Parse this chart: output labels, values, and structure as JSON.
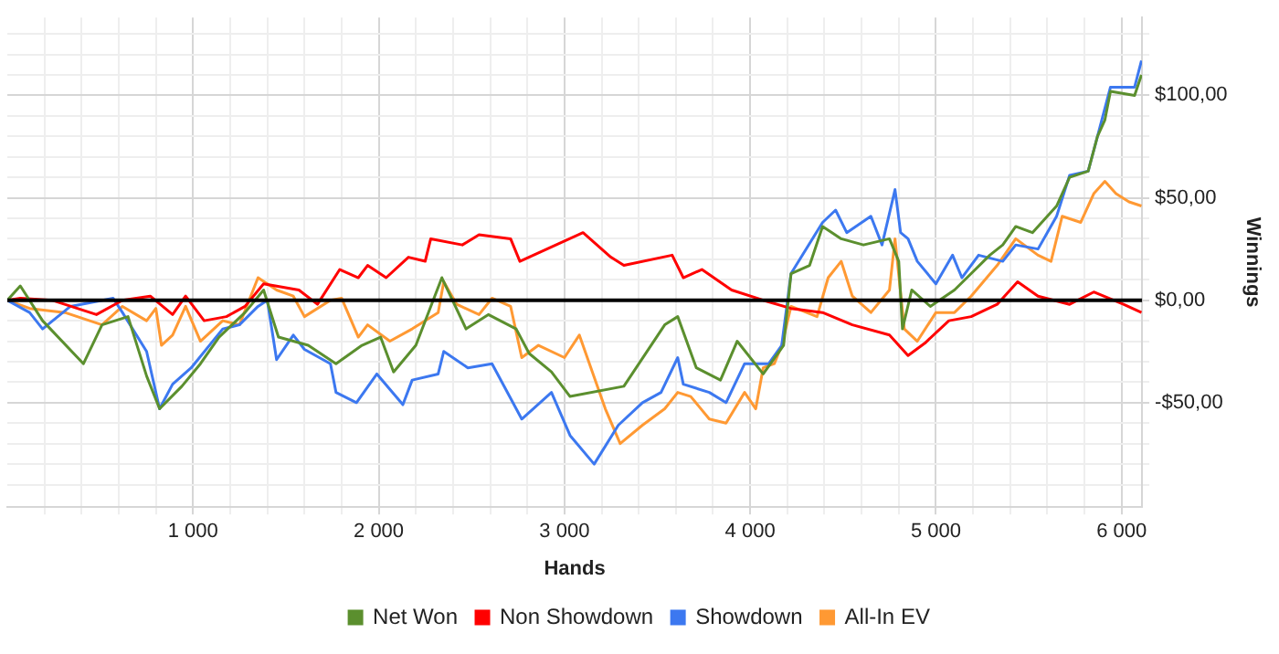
{
  "chart_data": {
    "type": "line",
    "xlabel": "Hands",
    "ylabel": "Winnings",
    "legend": "bottom",
    "grid": true,
    "xlim": [
      0,
      6110
    ],
    "ylim": [
      -101,
      138
    ],
    "xticks": [
      {
        "value": 200,
        "label": null
      },
      {
        "value": 400,
        "label": null
      },
      {
        "value": 600,
        "label": null
      },
      {
        "value": 800,
        "label": null
      },
      {
        "value": 1000,
        "label": "1 000"
      },
      {
        "value": 1200,
        "label": null
      },
      {
        "value": 1400,
        "label": null
      },
      {
        "value": 1600,
        "label": null
      },
      {
        "value": 1800,
        "label": null
      },
      {
        "value": 2000,
        "label": "2 000"
      },
      {
        "value": 2200,
        "label": null
      },
      {
        "value": 2400,
        "label": null
      },
      {
        "value": 2600,
        "label": null
      },
      {
        "value": 2800,
        "label": null
      },
      {
        "value": 3000,
        "label": "3 000"
      },
      {
        "value": 3200,
        "label": null
      },
      {
        "value": 3400,
        "label": null
      },
      {
        "value": 3600,
        "label": null
      },
      {
        "value": 3800,
        "label": null
      },
      {
        "value": 4000,
        "label": "4 000"
      },
      {
        "value": 4200,
        "label": null
      },
      {
        "value": 4400,
        "label": null
      },
      {
        "value": 4600,
        "label": null
      },
      {
        "value": 4800,
        "label": null
      },
      {
        "value": 5000,
        "label": "5 000"
      },
      {
        "value": 5200,
        "label": null
      },
      {
        "value": 5400,
        "label": null
      },
      {
        "value": 5600,
        "label": null
      },
      {
        "value": 5800,
        "label": null
      },
      {
        "value": 6000,
        "label": "6 000"
      }
    ],
    "yticks": [
      {
        "value": -90,
        "label": null
      },
      {
        "value": -80,
        "label": null
      },
      {
        "value": -70,
        "label": null
      },
      {
        "value": -60,
        "label": null
      },
      {
        "value": -50,
        "label": "-$50,00"
      },
      {
        "value": -40,
        "label": null
      },
      {
        "value": -30,
        "label": null
      },
      {
        "value": -20,
        "label": null
      },
      {
        "value": -10,
        "label": null
      },
      {
        "value": 0,
        "label": "$0,00"
      },
      {
        "value": 10,
        "label": null
      },
      {
        "value": 20,
        "label": null
      },
      {
        "value": 30,
        "label": null
      },
      {
        "value": 40,
        "label": null
      },
      {
        "value": 50,
        "label": "$50,00"
      },
      {
        "value": 60,
        "label": null
      },
      {
        "value": 70,
        "label": null
      },
      {
        "value": 80,
        "label": null
      },
      {
        "value": 90,
        "label": null
      },
      {
        "value": 100,
        "label": "$100,00"
      },
      {
        "value": 110,
        "label": null
      },
      {
        "value": 120,
        "label": null
      },
      {
        "value": 130,
        "label": null
      }
    ],
    "ref_lines": [
      {
        "axis": "y",
        "value": 0,
        "color": "#000000"
      }
    ],
    "series": [
      {
        "name": "Net Won",
        "color": "#5b8f2e",
        "x": [
          0,
          70,
          190,
          410,
          510,
          650,
          750,
          820,
          940,
          1040,
          1140,
          1280,
          1380,
          1460,
          1620,
          1770,
          1910,
          2010,
          2080,
          2200,
          2340,
          2470,
          2590,
          2740,
          2810,
          2930,
          3030,
          3320,
          3540,
          3610,
          3710,
          3840,
          3930,
          4070,
          4180,
          4220,
          4320,
          4390,
          4490,
          4610,
          4750,
          4800,
          4820,
          4870,
          4970,
          5100,
          5190,
          5290,
          5360,
          5430,
          5520,
          5650,
          5720,
          5820,
          5870,
          5910,
          5940,
          6070,
          6107
        ],
        "values": [
          0,
          7,
          -10,
          -31,
          -12,
          -8,
          -37,
          -53,
          -42,
          -31,
          -18,
          -6,
          5,
          -18,
          -22,
          -31,
          -22,
          -18,
          -35,
          -22,
          11,
          -14,
          -7,
          -14,
          -26,
          -35,
          -47,
          -42,
          -12,
          -8,
          -33,
          -39,
          -20,
          -36,
          -22,
          13,
          17,
          36,
          30,
          27,
          30,
          19,
          -14,
          5,
          -3,
          5,
          13,
          22,
          27,
          36,
          33,
          46,
          60,
          63,
          80,
          88,
          102,
          100,
          110
        ]
      },
      {
        "name": "Non Showdown",
        "color": "#ff0000",
        "x": [
          0,
          70,
          240,
          480,
          620,
          770,
          890,
          960,
          1060,
          1180,
          1280,
          1380,
          1570,
          1670,
          1790,
          1890,
          1940,
          2040,
          2160,
          2250,
          2280,
          2450,
          2540,
          2710,
          2760,
          2930,
          3100,
          3250,
          3320,
          3580,
          3640,
          3740,
          3900,
          4070,
          4220,
          4390,
          4550,
          4750,
          4850,
          4940,
          5070,
          5190,
          5330,
          5440,
          5550,
          5720,
          5850,
          6010,
          6107
        ],
        "values": [
          0,
          1,
          0,
          -7,
          0,
          2,
          -7,
          2,
          -10,
          -8,
          -3,
          8,
          5,
          -2,
          15,
          11,
          17,
          11,
          21,
          19,
          30,
          27,
          32,
          30,
          19,
          26,
          33,
          21,
          17,
          22,
          11,
          15,
          5,
          0,
          -4,
          -6,
          -12,
          -17,
          -27,
          -21,
          -10,
          -8,
          -2,
          9,
          2,
          -2,
          4,
          -2,
          -6
        ]
      },
      {
        "name": "Showdown",
        "color": "#3c78f0",
        "x": [
          0,
          120,
          190,
          340,
          570,
          620,
          750,
          820,
          890,
          990,
          1160,
          1250,
          1350,
          1400,
          1450,
          1540,
          1600,
          1740,
          1770,
          1880,
          1990,
          2130,
          2180,
          2320,
          2350,
          2480,
          2610,
          2770,
          2930,
          3030,
          3160,
          3290,
          3420,
          3520,
          3610,
          3640,
          3780,
          3870,
          3970,
          4100,
          4170,
          4220,
          4390,
          4460,
          4520,
          4650,
          4710,
          4780,
          4810,
          4850,
          4900,
          5000,
          5090,
          5140,
          5230,
          5360,
          5430,
          5550,
          5650,
          5720,
          5820,
          5870,
          5940,
          6070,
          6107
        ],
        "values": [
          0,
          -6,
          -14,
          -3,
          1,
          -6,
          -25,
          -53,
          -41,
          -33,
          -14,
          -12,
          -3,
          0,
          -29,
          -17,
          -24,
          -31,
          -45,
          -50,
          -36,
          -51,
          -39,
          -36,
          -25,
          -33,
          -31,
          -58,
          -45,
          -66,
          -80,
          -61,
          -50,
          -45,
          -28,
          -41,
          -45,
          -50,
          -31,
          -31,
          -22,
          13,
          38,
          44,
          33,
          41,
          27,
          54,
          33,
          30,
          19,
          8,
          22,
          11,
          22,
          19,
          27,
          25,
          41,
          61,
          63,
          80,
          104,
          104,
          117
        ]
      },
      {
        "name": "All-In EV",
        "color": "#ff9933",
        "x": [
          0,
          120,
          310,
          510,
          620,
          750,
          800,
          830,
          890,
          960,
          1040,
          1160,
          1250,
          1350,
          1450,
          1540,
          1600,
          1740,
          1800,
          1890,
          1940,
          2060,
          2180,
          2320,
          2350,
          2420,
          2540,
          2610,
          2710,
          2770,
          2860,
          3000,
          3080,
          3220,
          3300,
          3420,
          3540,
          3610,
          3680,
          3780,
          3870,
          3970,
          4030,
          4070,
          4130,
          4170,
          4220,
          4360,
          4420,
          4490,
          4550,
          4650,
          4750,
          4780,
          4830,
          4900,
          5000,
          5100,
          5190,
          5330,
          5430,
          5550,
          5620,
          5680,
          5780,
          5850,
          5910,
          5970,
          6040,
          6107
        ],
        "values": [
          0,
          -4,
          -6,
          -12,
          -3,
          -10,
          -4,
          -22,
          -17,
          -3,
          -20,
          -10,
          -12,
          11,
          5,
          2,
          -8,
          0,
          1,
          -18,
          -12,
          -20,
          -14,
          -6,
          9,
          -2,
          -7,
          1,
          -3,
          -28,
          -22,
          -28,
          -17,
          -53,
          -70,
          -61,
          -53,
          -45,
          -47,
          -58,
          -60,
          -45,
          -53,
          -33,
          -31,
          -22,
          -3,
          -8,
          11,
          19,
          2,
          -6,
          5,
          30,
          -14,
          -20,
          -6,
          -6,
          2,
          17,
          30,
          22,
          19,
          41,
          38,
          52,
          58,
          52,
          48,
          46
        ]
      }
    ]
  }
}
